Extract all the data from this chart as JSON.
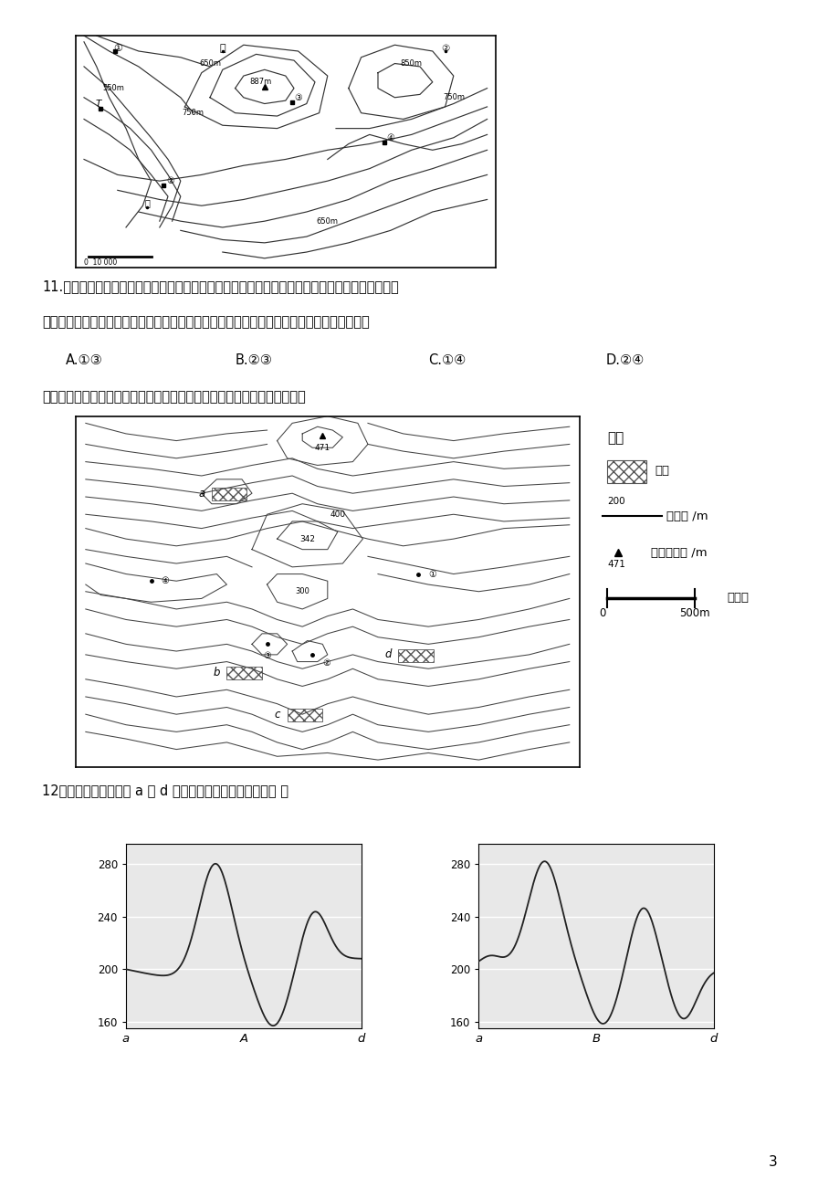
{
  "bg_color": "#ffffff",
  "page_number": "3",
  "q11_text_line1": "11.猎人熟悉动物习性，知道山羊喜欢在陡峻的山崖活动，而水鹿被追赶过后，会寻找有水的地方喝",
  "q11_text_line2": "水。在这次打猎中，他捕获了山羊和水鹿，请问他最有可能分别在图中哪两处捕获这两种动物",
  "q11_optA": "A.①③",
  "q11_optB": "B.②③",
  "q11_optC": "C.①④",
  "q11_optD": "D.②④",
  "q11_intro": "某地理学习小组对图示我国江南某区域进行野外考察。读图完成下列问题。",
  "q12_text": "12、学习小组绘制的由 a 到 d 四幅地形剖面图，正确的是（ ）",
  "legend_title": "图例",
  "legend_village": "村庄",
  "legend_contour_label": "200",
  "legend_contour_text": "等高线 /m",
  "legend_peak_label": "471",
  "legend_peak_text": "山峰和高程 /m",
  "legend_scale_text": "比例尺",
  "legend_scale_val": "500m"
}
